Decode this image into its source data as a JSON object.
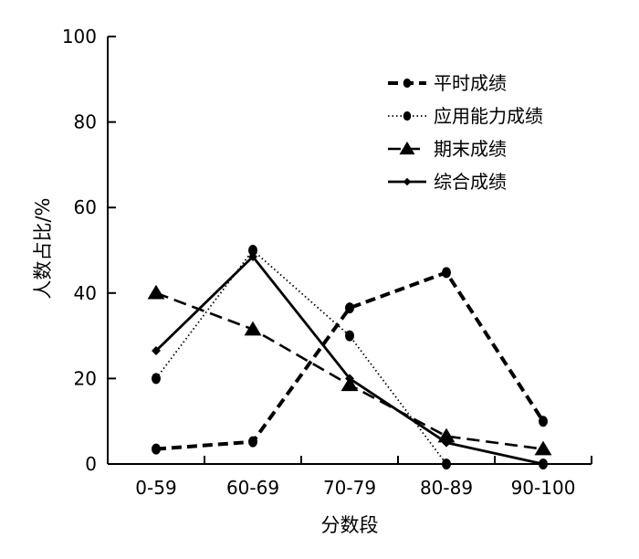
{
  "chart_data": {
    "type": "line",
    "title": "",
    "xlabel": "分数段",
    "ylabel": "人数占比/%",
    "categories": [
      "0-59",
      "60-69",
      "70-79",
      "80-89",
      "90-100"
    ],
    "ylim": [
      0,
      100
    ],
    "yticks": [
      0,
      20,
      40,
      60,
      80,
      100
    ],
    "grid": false,
    "legend_position": "top-right",
    "series": [
      {
        "name": "平时成绩",
        "values": [
          3.5,
          5.2,
          36.5,
          44.8,
          10
        ],
        "line_style": "dashed-heavy",
        "marker": "circle",
        "color": "#000000"
      },
      {
        "name": "应用能力成绩",
        "values": [
          20,
          50,
          30,
          0,
          0
        ],
        "line_style": "dotted",
        "marker": "circle",
        "color": "#000000"
      },
      {
        "name": "期末成绩",
        "values": [
          40,
          31.5,
          18.5,
          6.5,
          3.5
        ],
        "line_style": "dashed",
        "marker": "triangle",
        "color": "#000000"
      },
      {
        "name": "综合成绩",
        "values": [
          26.5,
          48.5,
          20,
          5,
          0
        ],
        "line_style": "solid",
        "marker": "diamond",
        "color": "#000000"
      }
    ]
  }
}
